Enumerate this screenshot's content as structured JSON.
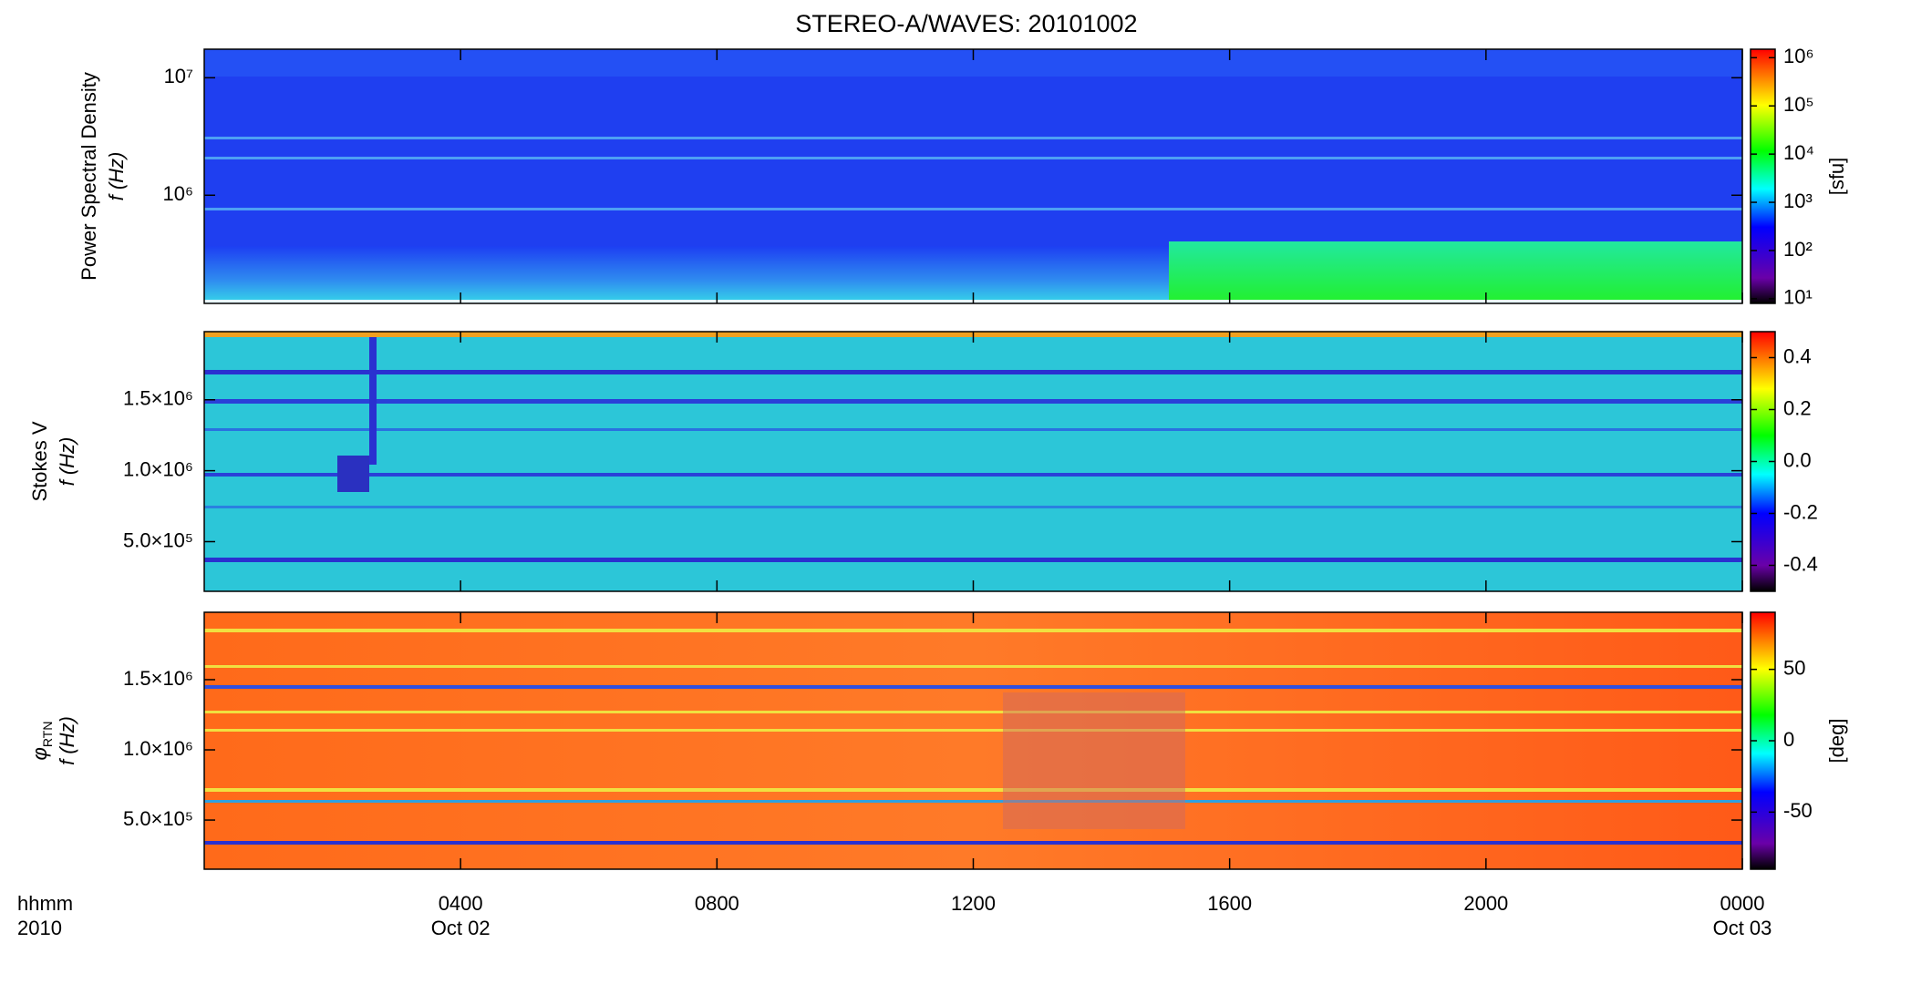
{
  "title": "STEREO-A/WAVES: 20101002",
  "x_axis": {
    "xlim": [
      0,
      24
    ],
    "xticks": [
      {
        "value": 4,
        "label": "0400"
      },
      {
        "value": 8,
        "label": "0800"
      },
      {
        "value": 12,
        "label": "1200"
      },
      {
        "value": 16,
        "label": "1600"
      },
      {
        "value": 20,
        "label": "2000"
      },
      {
        "value": 24,
        "label": "0000"
      }
    ],
    "date_labels": [
      {
        "value": 4,
        "label": "Oct 02"
      },
      {
        "value": 24,
        "label": "Oct 03"
      }
    ],
    "unit_label": "hhmm",
    "year_label": "2010"
  },
  "chart_data": [
    {
      "type": "spectrogram",
      "ylabel": "Power Spectral Density",
      "ylabel2": "f (Hz)",
      "yscale": "log",
      "ylim": [
        120000,
        17500000
      ],
      "yticks": [
        {
          "value": 1000000,
          "label": "10⁶"
        },
        {
          "value": 10000000,
          "label": "10⁷"
        }
      ],
      "colorbar": {
        "label": "[sfu]",
        "scale": "log",
        "colormap": "rainbow",
        "zlim": [
          8,
          1500000
        ],
        "ticks": [
          {
            "value": 10,
            "label": "10¹"
          },
          {
            "value": 100,
            "label": "10²"
          },
          {
            "value": 1000,
            "label": "10³"
          },
          {
            "value": 10000,
            "label": "10⁴"
          },
          {
            "value": 100000,
            "label": "10⁵"
          },
          {
            "value": 1000000,
            "label": "10⁶"
          }
        ]
      }
    },
    {
      "type": "spectrogram",
      "ylabel": "Stokes V",
      "ylabel2": "f (Hz)",
      "yscale": "linear",
      "ylim": [
        150000,
        1980000
      ],
      "yticks": [
        {
          "value": 500000,
          "label": "5.0×10⁵"
        },
        {
          "value": 1000000,
          "label": "1.0×10⁶"
        },
        {
          "value": 1500000,
          "label": "1.5×10⁶"
        }
      ],
      "colorbar": {
        "scale": "linear",
        "colormap": "rainbow",
        "zlim": [
          -0.5,
          0.5
        ],
        "ticks": [
          {
            "value": -0.4,
            "label": "-0.4"
          },
          {
            "value": -0.2,
            "label": "-0.2"
          },
          {
            "value": 0,
            "label": "0.0"
          },
          {
            "value": 0.2,
            "label": "0.2"
          },
          {
            "value": 0.4,
            "label": "0.4"
          }
        ]
      }
    },
    {
      "type": "spectrogram",
      "ylabel_symbol": "φ",
      "ylabel_subscript": "RTN",
      "ylabel2": "f (Hz)",
      "yscale": "linear",
      "ylim": [
        150000,
        1980000
      ],
      "yticks": [
        {
          "value": 500000,
          "label": "5.0×10⁵"
        },
        {
          "value": 1000000,
          "label": "1.0×10⁶"
        },
        {
          "value": 1500000,
          "label": "1.5×10⁶"
        }
      ],
      "colorbar": {
        "label": "[deg]",
        "scale": "linear",
        "colormap": "rainbow",
        "zlim": [
          -90,
          90
        ],
        "ticks": [
          -50,
          0,
          50
        ]
      }
    }
  ]
}
